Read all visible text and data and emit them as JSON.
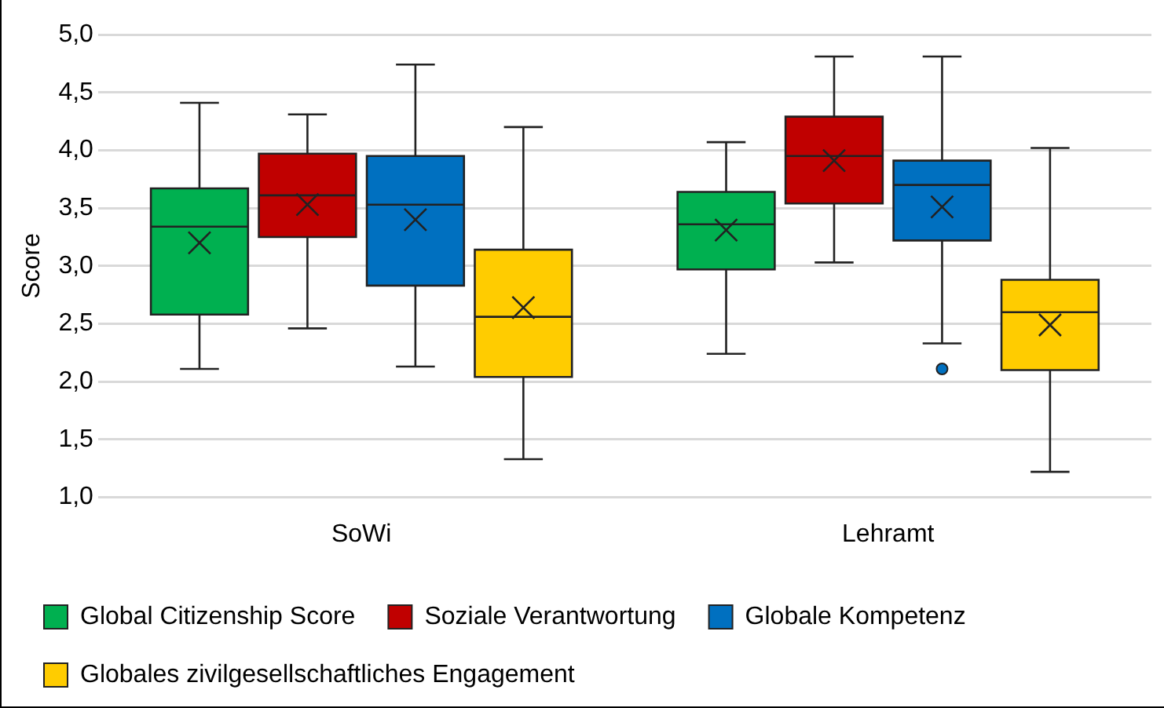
{
  "chart_data": {
    "type": "box",
    "ylabel": "Score",
    "categories": [
      "SoWi",
      "Lehramt"
    ],
    "ylim": [
      1,
      5
    ],
    "yticks": [
      {
        "value": 1,
        "label": "1,0"
      },
      {
        "value": 1.5,
        "label": "1,5"
      },
      {
        "value": 2,
        "label": "2,0"
      },
      {
        "value": 2.5,
        "label": "2,5"
      },
      {
        "value": 3,
        "label": "3,0"
      },
      {
        "value": 3.5,
        "label": "3,5"
      },
      {
        "value": 4,
        "label": "4,0"
      },
      {
        "value": 4.5,
        "label": "4,5"
      },
      {
        "value": 5,
        "label": "5,0"
      }
    ],
    "grid": "y",
    "legend": "bottom",
    "series": [
      {
        "name": "Global Citizenship Score",
        "color": "#00b050",
        "boxes": [
          {
            "low": 2.11,
            "q1": 2.58,
            "median": 3.34,
            "q3": 3.67,
            "high": 4.41,
            "mean": 3.2
          },
          {
            "low": 2.24,
            "q1": 2.97,
            "median": 3.36,
            "q3": 3.64,
            "high": 4.07,
            "mean": 3.31
          }
        ]
      },
      {
        "name": "Soziale Verantwortung",
        "color": "#c00000",
        "boxes": [
          {
            "low": 2.46,
            "q1": 3.25,
            "median": 3.61,
            "q3": 3.97,
            "high": 4.31,
            "mean": 3.53
          },
          {
            "low": 3.03,
            "q1": 3.54,
            "median": 3.95,
            "q3": 4.29,
            "high": 4.81,
            "mean": 3.91
          }
        ]
      },
      {
        "name": "Globale Kompetenz",
        "color": "#0070c0",
        "boxes": [
          {
            "low": 2.13,
            "q1": 2.83,
            "median": 3.53,
            "q3": 3.95,
            "high": 4.74,
            "mean": 3.4
          },
          {
            "low": 2.33,
            "q1": 3.22,
            "median": 3.7,
            "q3": 3.91,
            "high": 4.81,
            "mean": 3.51,
            "outliers": [
              2.11
            ]
          }
        ]
      },
      {
        "name": "Globales zivilgesellschaftliches Engagement",
        "color": "#ffcc00",
        "boxes": [
          {
            "low": 1.33,
            "q1": 2.04,
            "median": 2.56,
            "q3": 3.14,
            "high": 4.2,
            "mean": 2.64
          },
          {
            "low": 1.22,
            "q1": 2.1,
            "median": 2.6,
            "q3": 2.88,
            "high": 4.02,
            "mean": 2.49
          }
        ]
      }
    ]
  }
}
